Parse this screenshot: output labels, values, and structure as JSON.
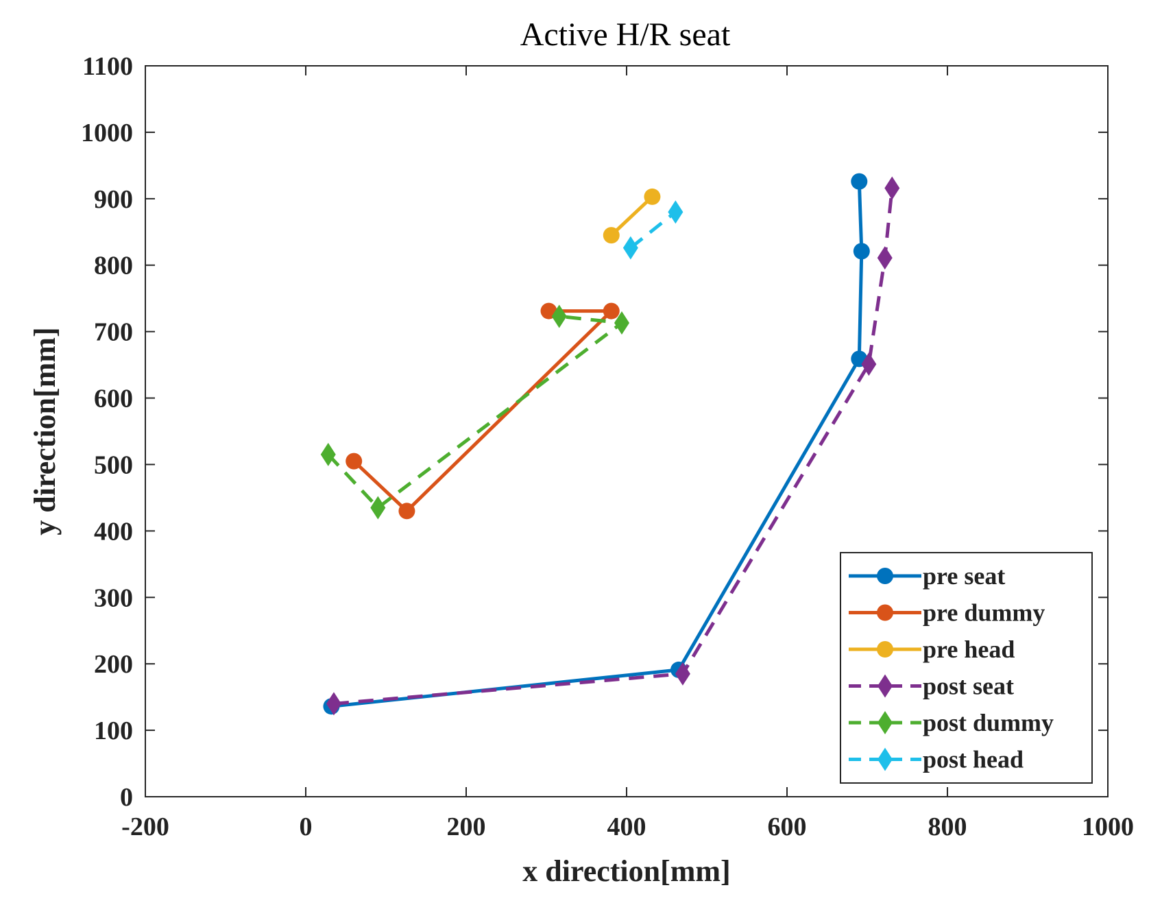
{
  "chart_data": {
    "type": "line",
    "title": "Active H/R seat",
    "xlabel": "x direction[mm]",
    "ylabel": "y direction[mm]",
    "xlim": [
      -200,
      1000
    ],
    "ylim": [
      0,
      1100
    ],
    "xticks": [
      -200,
      0,
      200,
      400,
      600,
      800,
      1000
    ],
    "yticks": [
      0,
      100,
      200,
      300,
      400,
      500,
      600,
      700,
      800,
      900,
      1000,
      1100
    ],
    "grid": false,
    "legend_position": "bottom-right",
    "series": [
      {
        "name": "pre seat",
        "color": "#0072BD",
        "dash": "solid",
        "marker": "circle",
        "x": [
          32,
          465,
          690,
          693,
          690
        ],
        "y": [
          136,
          191,
          659,
          821,
          926
        ]
      },
      {
        "name": "pre dummy",
        "color": "#D95319",
        "dash": "solid",
        "marker": "circle",
        "x": [
          60,
          126,
          381,
          303
        ],
        "y": [
          505,
          430,
          731,
          731
        ]
      },
      {
        "name": "pre head",
        "color": "#EDB120",
        "dash": "solid",
        "marker": "circle",
        "x": [
          381,
          432
        ],
        "y": [
          845,
          903
        ]
      },
      {
        "name": "post seat",
        "color": "#7E2F8E",
        "dash": "dashed",
        "marker": "diamond",
        "x": [
          35,
          470,
          702,
          722,
          731
        ],
        "y": [
          140,
          185,
          651,
          811,
          916
        ]
      },
      {
        "name": "post dummy",
        "color": "#4DAE2F",
        "dash": "dashed",
        "marker": "diamond",
        "x": [
          28,
          90,
          394,
          316
        ],
        "y": [
          515,
          435,
          713,
          723
        ]
      },
      {
        "name": "post head",
        "color": "#1EBFEA",
        "dash": "dashed",
        "marker": "diamond",
        "x": [
          405,
          461
        ],
        "y": [
          826,
          880
        ]
      }
    ]
  }
}
